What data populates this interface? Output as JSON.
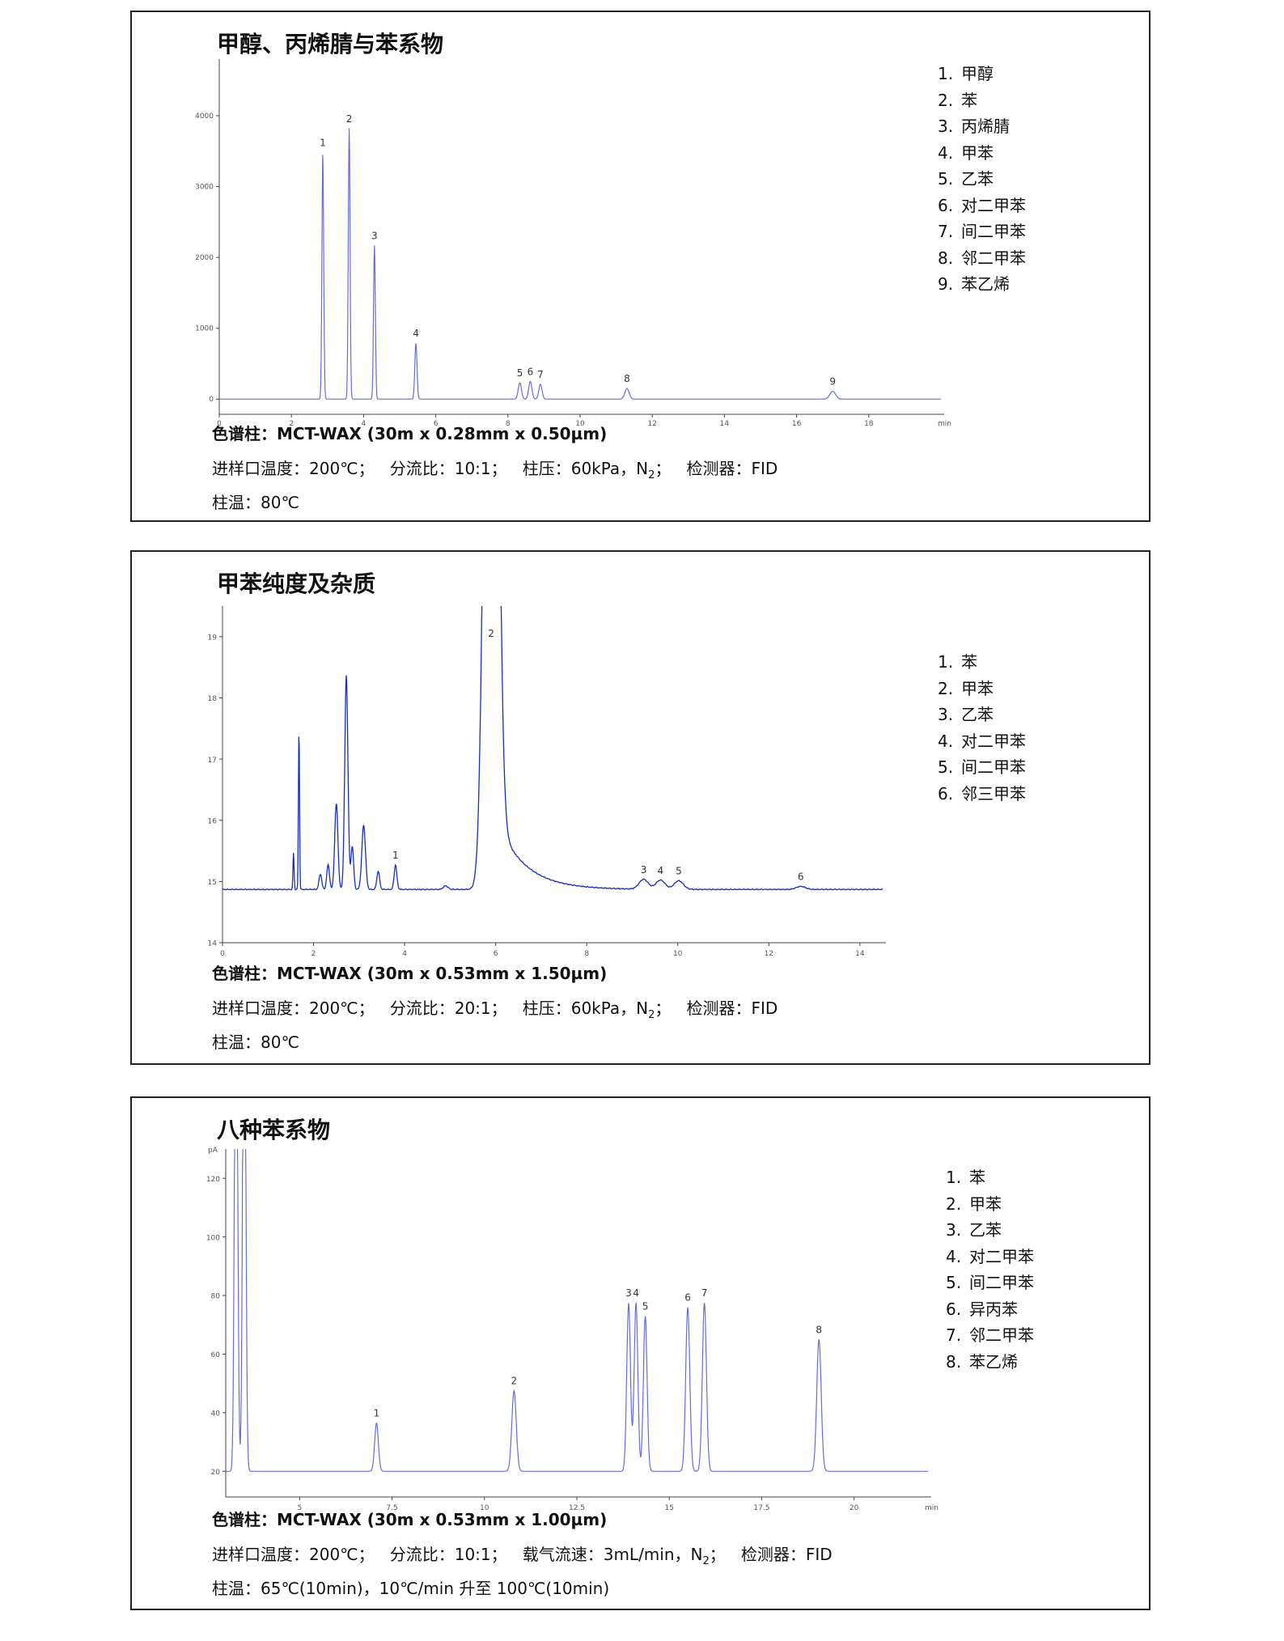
{
  "panels": [
    {
      "title": "甲醇、丙烯腈与苯系物",
      "legend": [
        "甲醇",
        "苯",
        "丙烯腈",
        "甲苯",
        "乙苯",
        "对二甲苯",
        "间二甲苯",
        "邻二甲苯",
        "苯乙烯"
      ],
      "column": "色谱柱：MCT-WAX (30m x 0.28mm x 0.50µm)",
      "conditions": [
        "进样口温度：200℃；",
        "分流比：10:1；",
        "柱压：60kPa，N",
        "2",
        "；",
        "检测器：FID"
      ],
      "oven": "柱温：80℃"
    },
    {
      "title": "甲苯纯度及杂质",
      "legend": [
        "苯",
        "甲苯",
        "乙苯",
        "对二甲苯",
        "间二甲苯",
        "邻三甲苯"
      ],
      "column": "色谱柱：MCT-WAX (30m x 0.53mm x 1.50µm)",
      "conditions": [
        "进样口温度：200℃；",
        "分流比：20:1；",
        "柱压：60kPa，N",
        "2",
        "；",
        "检测器：FID"
      ],
      "oven": "柱温：80℃"
    },
    {
      "title": "八种苯系物",
      "legend": [
        "苯",
        "甲苯",
        "乙苯",
        "对二甲苯",
        "间二甲苯",
        "异丙苯",
        "邻二甲苯",
        "苯乙烯"
      ],
      "column": "色谱柱：MCT-WAX (30m x 0.53mm x 1.00µm)",
      "conditions": [
        "进样口温度：200℃；",
        "分流比：10:1；",
        "载气流速：3mL/min，N",
        "2",
        "；",
        "检测器：FID"
      ],
      "oven": "柱温：65℃(10min)，10℃/min 升至 100℃(10min)"
    }
  ],
  "chart_data": [
    {
      "type": "line",
      "title": "甲醇、丙烯腈与苯系物",
      "xlabel": "min",
      "ylabel": "",
      "xlim": [
        0,
        20
      ],
      "ylim": [
        -100,
        4800
      ],
      "xticks": [
        0,
        2,
        4,
        6,
        8,
        10,
        12,
        14,
        16,
        18
      ],
      "yticks": [
        0,
        1000,
        2000,
        3000,
        4000
      ],
      "baseline": 0,
      "color": "#6b6bd8",
      "peaks": [
        {
          "label": "1",
          "rt": 2.87,
          "height": 3480,
          "width": 0.025
        },
        {
          "label": "2",
          "rt": 3.6,
          "height": 3820,
          "width": 0.025
        },
        {
          "label": "3",
          "rt": 4.3,
          "height": 2170,
          "width": 0.025
        },
        {
          "label": "4",
          "rt": 5.45,
          "height": 790,
          "width": 0.03
        },
        {
          "label": "5",
          "rt": 8.33,
          "height": 230,
          "width": 0.045
        },
        {
          "label": "6",
          "rt": 8.62,
          "height": 250,
          "width": 0.045
        },
        {
          "label": "7",
          "rt": 8.9,
          "height": 210,
          "width": 0.045
        },
        {
          "label": "8",
          "rt": 11.3,
          "height": 150,
          "width": 0.06
        },
        {
          "label": "9",
          "rt": 17.0,
          "height": 110,
          "width": 0.08
        }
      ]
    },
    {
      "type": "line",
      "title": "甲苯纯度及杂质",
      "xlabel": "",
      "ylabel": "",
      "xlim": [
        0,
        14.5
      ],
      "ylim": [
        14,
        19.5
      ],
      "xticks": [
        0,
        2,
        4,
        6,
        8,
        10,
        12,
        14
      ],
      "yticks": [
        14,
        15,
        16,
        17,
        18,
        19
      ],
      "baseline": 14.87,
      "color": "#1a2fb5",
      "peaks": [
        {
          "label": "",
          "rt": 1.56,
          "height": 0.6,
          "width": 0.012
        },
        {
          "label": "",
          "rt": 1.68,
          "height": 2.6,
          "width": 0.012
        },
        {
          "label": "",
          "rt": 2.15,
          "height": 0.25,
          "width": 0.03
        },
        {
          "label": "",
          "rt": 2.32,
          "height": 0.4,
          "width": 0.03
        },
        {
          "label": "",
          "rt": 2.5,
          "height": 1.4,
          "width": 0.035
        },
        {
          "label": "",
          "rt": 2.72,
          "height": 3.5,
          "width": 0.035
        },
        {
          "label": "",
          "rt": 2.85,
          "height": 0.7,
          "width": 0.03
        },
        {
          "label": "",
          "rt": 3.1,
          "height": 1.05,
          "width": 0.04
        },
        {
          "label": "",
          "rt": 3.42,
          "height": 0.3,
          "width": 0.03
        },
        {
          "label": "1",
          "rt": 3.8,
          "height": 0.4,
          "width": 0.03
        },
        {
          "label": "",
          "rt": 4.9,
          "height": 0.06,
          "width": 0.05
        },
        {
          "label": "2",
          "rt": 5.9,
          "height": 20,
          "width": 0.12,
          "tail": 0.6
        },
        {
          "label": "3",
          "rt": 9.25,
          "height": 0.16,
          "width": 0.1
        },
        {
          "label": "4",
          "rt": 9.62,
          "height": 0.15,
          "width": 0.1
        },
        {
          "label": "5",
          "rt": 10.02,
          "height": 0.14,
          "width": 0.1
        },
        {
          "label": "6",
          "rt": 12.7,
          "height": 0.05,
          "width": 0.1
        }
      ]
    },
    {
      "type": "line",
      "title": "八种苯系物",
      "xlabel": "min",
      "ylabel": "pA",
      "xlim": [
        3,
        22
      ],
      "ylim": [
        14,
        130
      ],
      "xticks": [
        5,
        7.5,
        10,
        12.5,
        15,
        17.5,
        20
      ],
      "yticks": [
        20,
        40,
        60,
        80,
        100,
        120
      ],
      "baseline": 20,
      "color": "#6b6bd8",
      "peaks": [
        {
          "label": "",
          "rt": 3.28,
          "height": 200,
          "width": 0.04
        },
        {
          "label": "",
          "rt": 3.5,
          "height": 200,
          "width": 0.04
        },
        {
          "label": "1",
          "rt": 7.08,
          "height": 16.5,
          "width": 0.05
        },
        {
          "label": "2",
          "rt": 10.8,
          "height": 27.5,
          "width": 0.06
        },
        {
          "label": "3",
          "rt": 13.9,
          "height": 57.5,
          "width": 0.05
        },
        {
          "label": "4",
          "rt": 14.1,
          "height": 57.5,
          "width": 0.05
        },
        {
          "label": "5",
          "rt": 14.35,
          "height": 53,
          "width": 0.05
        },
        {
          "label": "6",
          "rt": 15.5,
          "height": 56,
          "width": 0.055
        },
        {
          "label": "7",
          "rt": 15.95,
          "height": 57.5,
          "width": 0.055
        },
        {
          "label": "8",
          "rt": 19.05,
          "height": 45,
          "width": 0.06
        }
      ]
    }
  ]
}
